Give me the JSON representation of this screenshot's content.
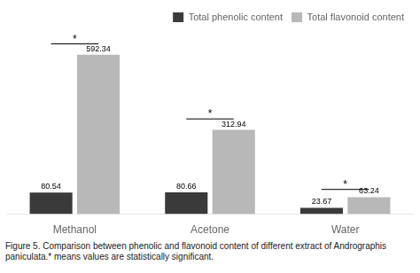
{
  "chart_data": {
    "type": "bar",
    "categories": [
      "Methanol",
      "Acetone",
      "Water"
    ],
    "series": [
      {
        "name": "Total phenolic content",
        "color": "#3a3a3a",
        "values": [
          80.54,
          80.66,
          23.67
        ]
      },
      {
        "name": "Total flavonoid content",
        "color": "#b8b8b8",
        "values": [
          592.34,
          312.94,
          63.24
        ]
      }
    ],
    "ylim": [
      0,
      680
    ],
    "tick_labels": "x",
    "grid": false,
    "legend": "upper right",
    "data_labels": true,
    "annotations": [
      {
        "category": "Methanol",
        "y": 632.4,
        "label": "*"
      },
      {
        "category": "Acetone",
        "y": 353.6,
        "label": "*"
      },
      {
        "category": "Water",
        "y": 91.8,
        "label": "*"
      }
    ],
    "caption": "Figure 5. Comparison between phenolic and flavonoid content of different extract of Andrographis paniculata.* means values are statistically significant."
  }
}
